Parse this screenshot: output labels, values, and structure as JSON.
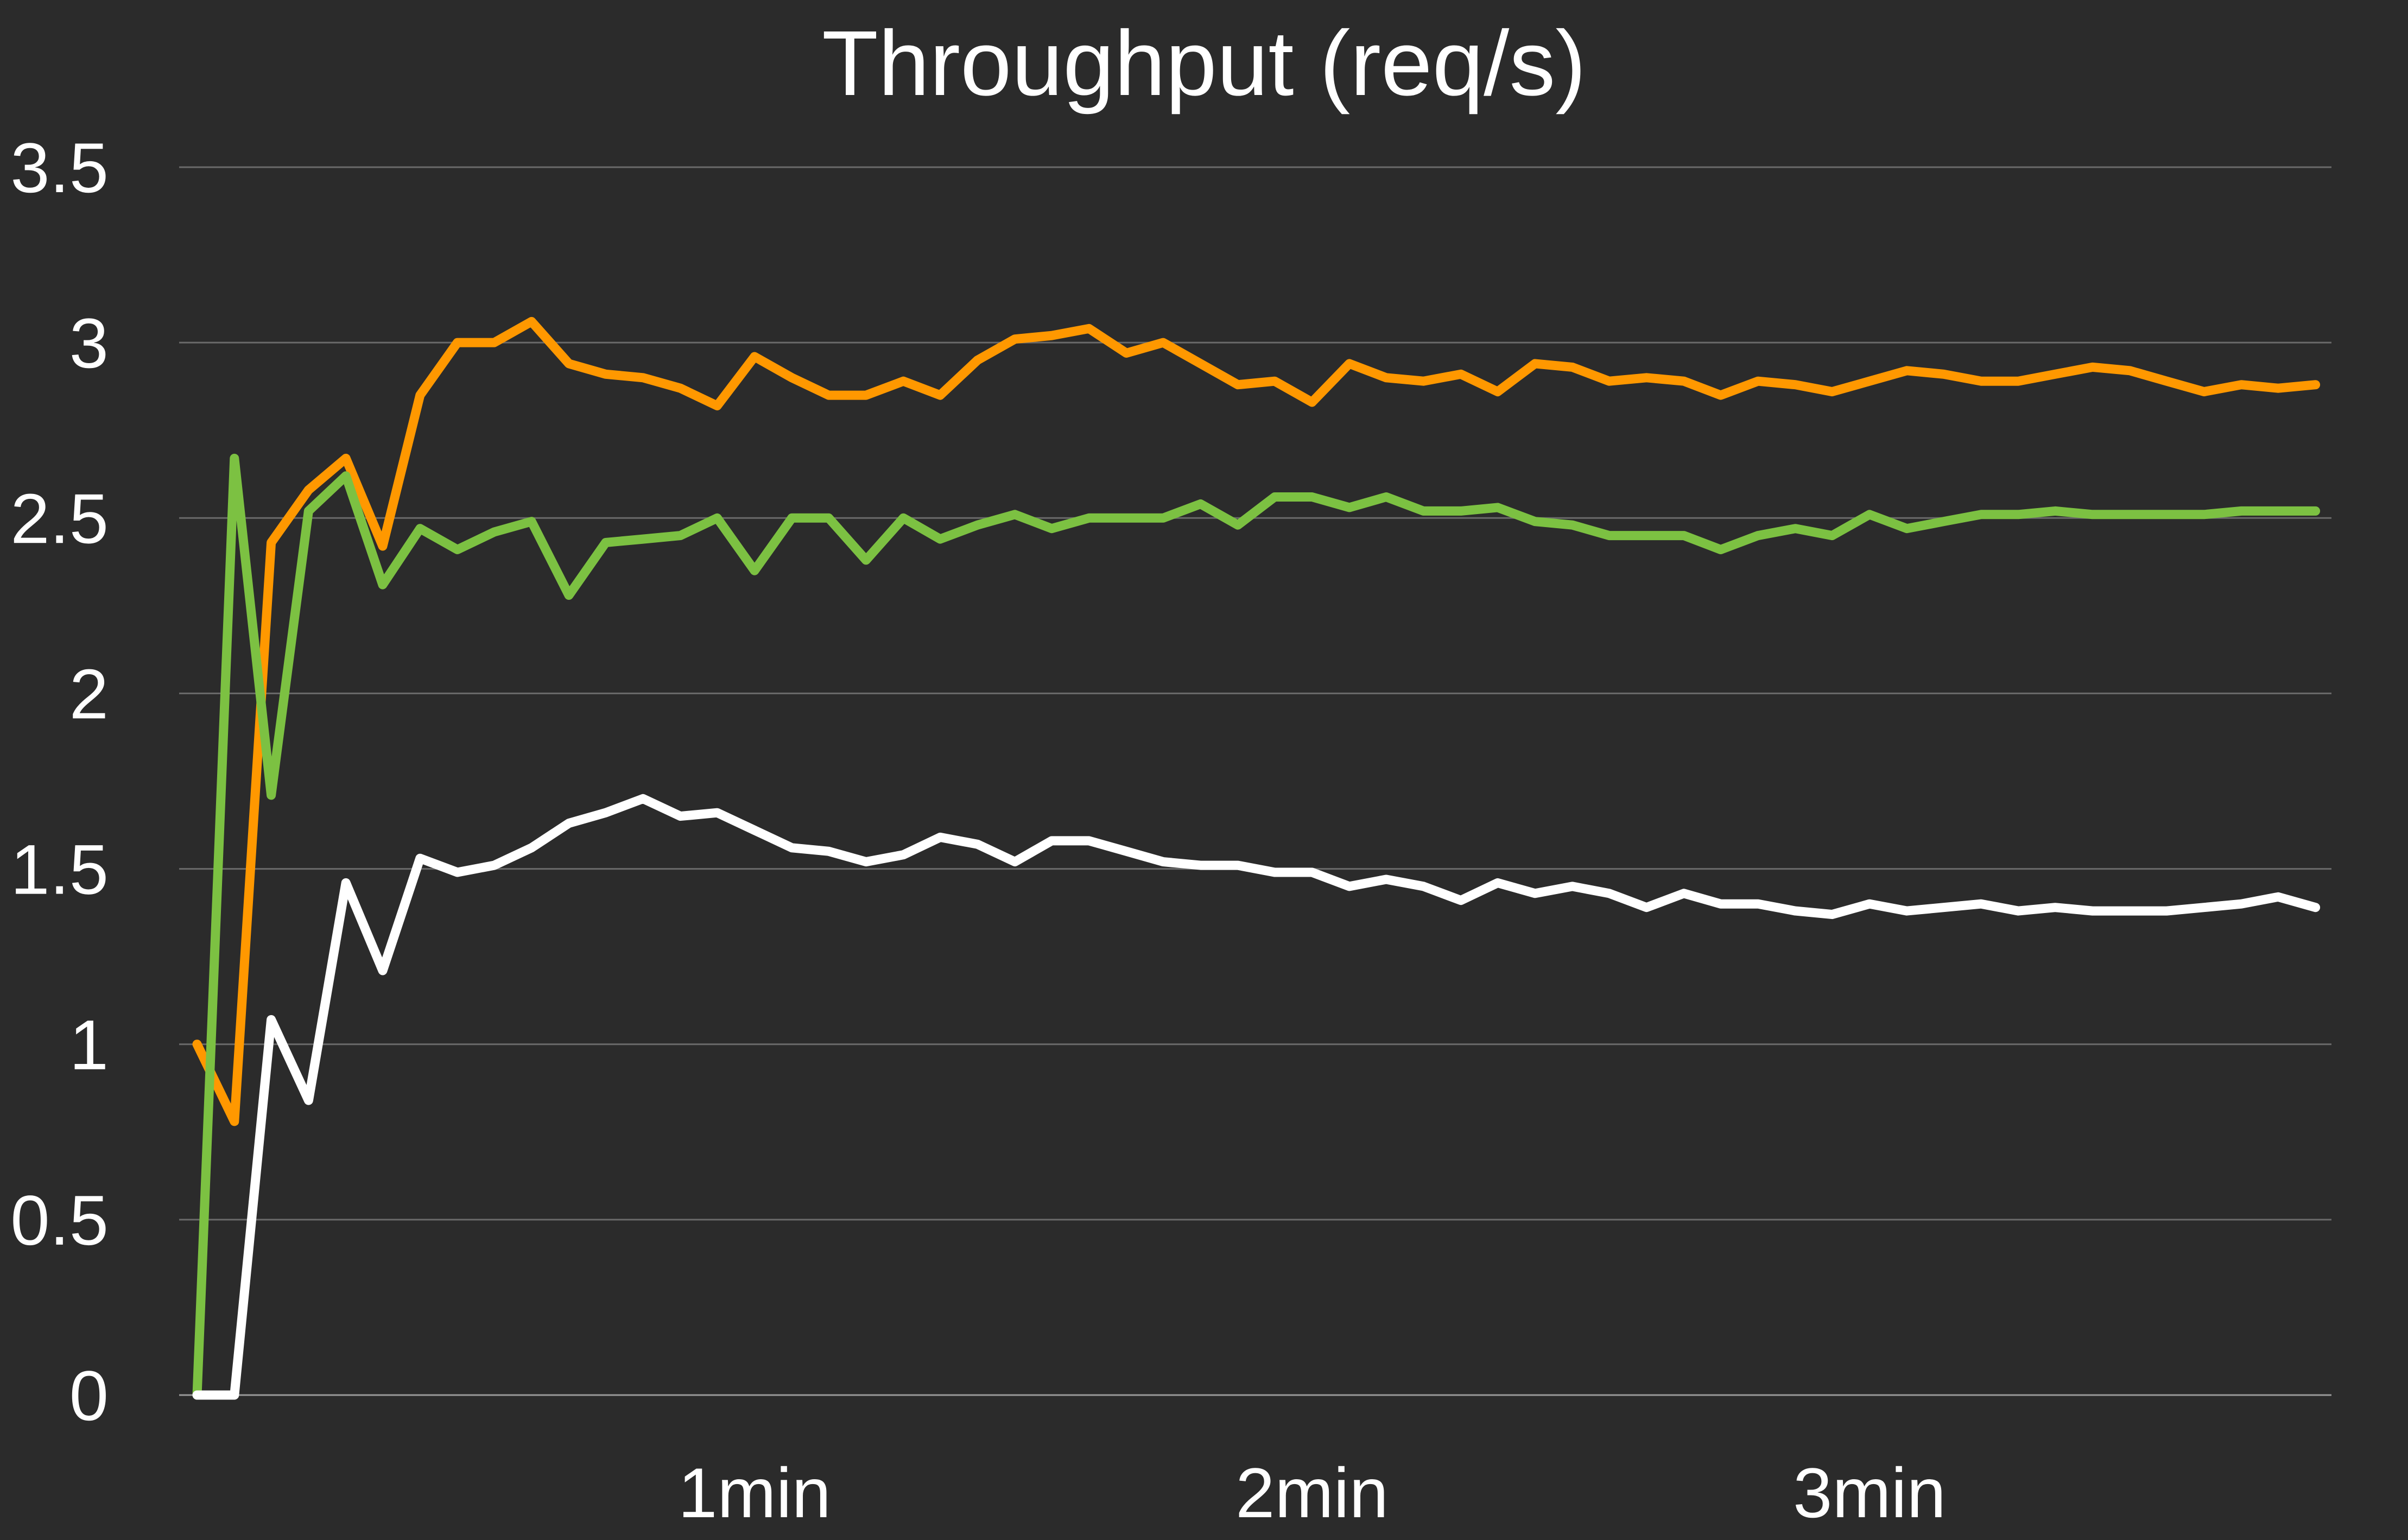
{
  "chart_data": {
    "type": "line",
    "title": "Throughput (req/s)",
    "xlabel": "",
    "ylabel": "",
    "ylim": [
      0,
      3.5
    ],
    "xlim": [
      0,
      3.85
    ],
    "xunit": "min",
    "y_ticks": [
      {
        "value": 0,
        "label": "0"
      },
      {
        "value": 0.5,
        "label": "0.5"
      },
      {
        "value": 1,
        "label": "1"
      },
      {
        "value": 1.5,
        "label": "1.5"
      },
      {
        "value": 2,
        "label": "2"
      },
      {
        "value": 2.5,
        "label": "2.5"
      },
      {
        "value": 3,
        "label": "3"
      },
      {
        "value": 3.5,
        "label": "3.5"
      }
    ],
    "x_ticks": [
      {
        "value": 1,
        "label": "1min"
      },
      {
        "value": 2,
        "label": "2min"
      },
      {
        "value": 3,
        "label": "3min"
      }
    ],
    "grid": true,
    "legend": "none",
    "series": [
      {
        "color": "#ff9800",
        "x": [
          0.0,
          0.067,
          0.133,
          0.2,
          0.267,
          0.333,
          0.4,
          0.467,
          0.533,
          0.6,
          0.667,
          0.733,
          0.8,
          0.867,
          0.933,
          1.0,
          1.067,
          1.133,
          1.2,
          1.267,
          1.333,
          1.4,
          1.467,
          1.533,
          1.6,
          1.667,
          1.733,
          1.8,
          1.867,
          1.933,
          2.0,
          2.067,
          2.133,
          2.2,
          2.267,
          2.333,
          2.4,
          2.467,
          2.533,
          2.6,
          2.667,
          2.733,
          2.8,
          2.867,
          2.933,
          3.0,
          3.067,
          3.133,
          3.2,
          3.267,
          3.333,
          3.4,
          3.467,
          3.533,
          3.6,
          3.667,
          3.733,
          3.8
        ],
        "values": [
          1.0,
          0.78,
          2.43,
          2.58,
          2.67,
          2.42,
          2.85,
          3.0,
          3.0,
          3.06,
          2.94,
          2.91,
          2.9,
          2.87,
          2.82,
          2.96,
          2.9,
          2.85,
          2.85,
          2.89,
          2.85,
          2.95,
          3.01,
          3.02,
          3.04,
          2.97,
          3.0,
          2.94,
          2.88,
          2.89,
          2.83,
          2.94,
          2.9,
          2.89,
          2.91,
          2.86,
          2.94,
          2.93,
          2.89,
          2.9,
          2.89,
          2.85,
          2.89,
          2.88,
          2.86,
          2.89,
          2.92,
          2.91,
          2.89,
          2.89,
          2.91,
          2.93,
          2.92,
          2.89,
          2.86,
          2.88,
          2.87,
          2.88
        ]
      },
      {
        "color": "#7cc142",
        "x": [
          0.0,
          0.067,
          0.133,
          0.2,
          0.267,
          0.333,
          0.4,
          0.467,
          0.533,
          0.6,
          0.667,
          0.733,
          0.8,
          0.867,
          0.933,
          1.0,
          1.067,
          1.133,
          1.2,
          1.267,
          1.333,
          1.4,
          1.467,
          1.533,
          1.6,
          1.667,
          1.733,
          1.8,
          1.867,
          1.933,
          2.0,
          2.067,
          2.133,
          2.2,
          2.267,
          2.333,
          2.4,
          2.467,
          2.533,
          2.6,
          2.667,
          2.733,
          2.8,
          2.867,
          2.933,
          3.0,
          3.067,
          3.133,
          3.2,
          3.267,
          3.333,
          3.4,
          3.467,
          3.533,
          3.6,
          3.667,
          3.733,
          3.8
        ],
        "values": [
          0.0,
          2.67,
          1.71,
          2.52,
          2.62,
          2.31,
          2.47,
          2.41,
          2.46,
          2.49,
          2.28,
          2.43,
          2.44,
          2.45,
          2.5,
          2.35,
          2.5,
          2.5,
          2.38,
          2.5,
          2.44,
          2.48,
          2.51,
          2.47,
          2.5,
          2.5,
          2.5,
          2.54,
          2.48,
          2.56,
          2.56,
          2.53,
          2.56,
          2.52,
          2.52,
          2.53,
          2.49,
          2.48,
          2.45,
          2.45,
          2.45,
          2.41,
          2.45,
          2.47,
          2.45,
          2.51,
          2.47,
          2.49,
          2.51,
          2.51,
          2.52,
          2.51,
          2.51,
          2.51,
          2.51,
          2.52,
          2.52,
          2.52
        ]
      },
      {
        "color": "#ffffff",
        "x": [
          0.0,
          0.067,
          0.133,
          0.2,
          0.267,
          0.333,
          0.4,
          0.467,
          0.533,
          0.6,
          0.667,
          0.733,
          0.8,
          0.867,
          0.933,
          1.0,
          1.067,
          1.133,
          1.2,
          1.267,
          1.333,
          1.4,
          1.467,
          1.533,
          1.6,
          1.667,
          1.733,
          1.8,
          1.867,
          1.933,
          2.0,
          2.067,
          2.133,
          2.2,
          2.267,
          2.333,
          2.4,
          2.467,
          2.533,
          2.6,
          2.667,
          2.733,
          2.8,
          2.867,
          2.933,
          3.0,
          3.067,
          3.133,
          3.2,
          3.267,
          3.333,
          3.4,
          3.467,
          3.533,
          3.6,
          3.667,
          3.733,
          3.8
        ],
        "values": [
          0.0,
          0.0,
          1.07,
          0.84,
          1.46,
          1.21,
          1.53,
          1.49,
          1.51,
          1.56,
          1.63,
          1.66,
          1.7,
          1.65,
          1.66,
          1.61,
          1.56,
          1.55,
          1.52,
          1.54,
          1.59,
          1.57,
          1.52,
          1.58,
          1.58,
          1.55,
          1.52,
          1.51,
          1.51,
          1.49,
          1.49,
          1.45,
          1.47,
          1.45,
          1.41,
          1.46,
          1.43,
          1.45,
          1.43,
          1.39,
          1.43,
          1.4,
          1.4,
          1.38,
          1.37,
          1.4,
          1.38,
          1.39,
          1.4,
          1.38,
          1.39,
          1.38,
          1.38,
          1.38,
          1.39,
          1.4,
          1.42,
          1.39
        ]
      }
    ]
  }
}
